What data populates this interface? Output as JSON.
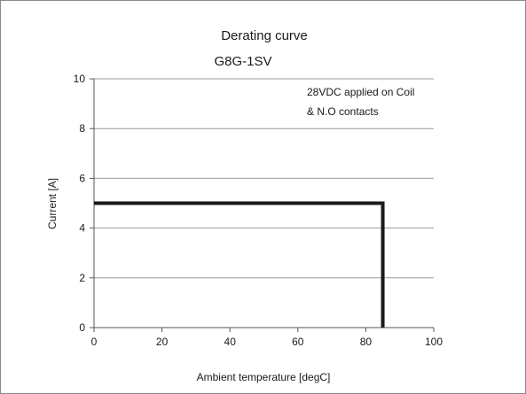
{
  "chart_data": {
    "type": "line",
    "title": "Derating curve",
    "subtitle": "G8G-1SV",
    "xlabel": "Ambient temperature [degC]",
    "ylabel": "Current [A]",
    "xlim": [
      0,
      100
    ],
    "ylim": [
      0,
      10
    ],
    "xticks": [
      0,
      20,
      40,
      60,
      80,
      100
    ],
    "yticks": [
      0,
      2,
      4,
      6,
      8,
      10
    ],
    "grid": "horizontal",
    "annotation": [
      "28VDC applied on Coil",
      "& N.O contacts"
    ],
    "series": [
      {
        "x": [
          0,
          85,
          85
        ],
        "y": [
          5,
          5,
          0
        ],
        "color": "#1a1a1a"
      }
    ]
  }
}
